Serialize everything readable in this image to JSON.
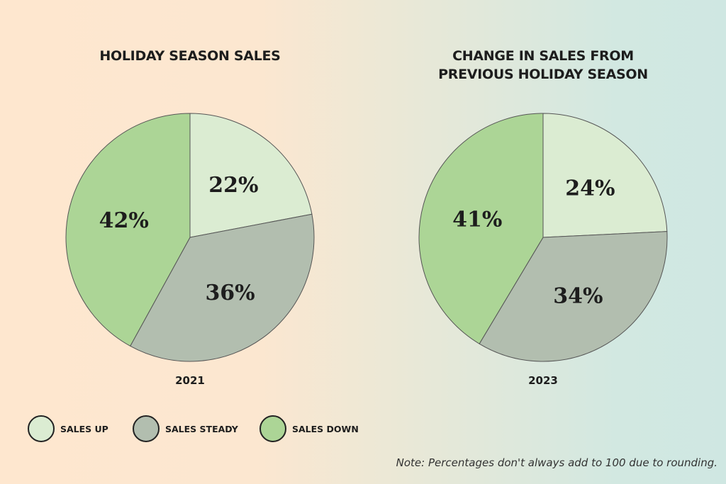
{
  "note": "Note: Percentages don't always add to 100 due to rounding.",
  "legend": [
    {
      "label": "SALES UP",
      "color": "#dbecd2"
    },
    {
      "label": "SALES STEADY",
      "color": "#b2beaf"
    },
    {
      "label": "SALES DOWN",
      "color": "#acd596"
    }
  ],
  "chart_data": [
    {
      "type": "pie",
      "title": "HOLIDAY SEASON SALES",
      "xlabel": "2021",
      "categories": [
        "SALES UP",
        "SALES STEADY",
        "SALES DOWN"
      ],
      "values": [
        22,
        36,
        42
      ],
      "labels": [
        "22%",
        "36%",
        "42%"
      ]
    },
    {
      "type": "pie",
      "title": "CHANGE IN SALES FROM PREVIOUS HOLIDAY SEASON",
      "xlabel": "2023",
      "categories": [
        "SALES UP",
        "SALES STEADY",
        "SALES DOWN"
      ],
      "values": [
        24,
        34,
        41
      ],
      "labels": [
        "24%",
        "34%",
        "41%"
      ]
    }
  ]
}
